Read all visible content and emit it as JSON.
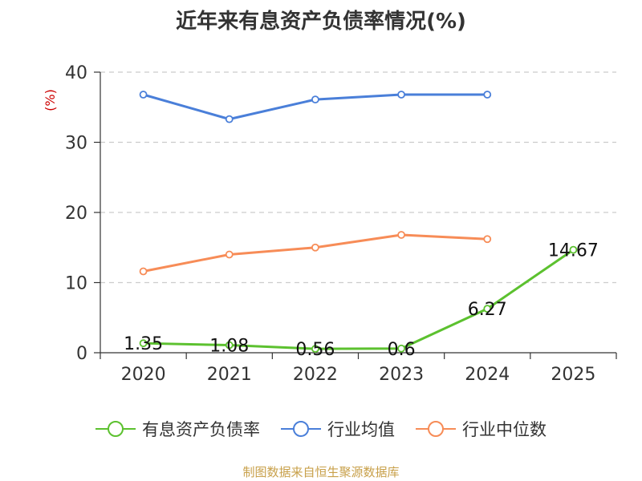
{
  "title": "近年来有息资产负债率情况(%)",
  "source": "制图数据来自恒生聚源数据库",
  "chart_data": {
    "type": "line",
    "title": "近年来有息资产负债率情况(%)",
    "categories": [
      "2020",
      "2021",
      "2022",
      "2023",
      "2024",
      "2025"
    ],
    "ylabel": "(%)",
    "ylim": [
      0,
      40
    ],
    "yticks": [
      "0",
      "10",
      "20",
      "30",
      "40"
    ],
    "grid": true,
    "legend_position": "bottom",
    "series": [
      {
        "name": "有息资产负债率",
        "color": "#5cc12f",
        "values": [
          1.35,
          1.08,
          0.56,
          0.6,
          6.27,
          14.67
        ],
        "labels": [
          "1.35",
          "1.08",
          "0.56",
          "0.6",
          "6.27",
          "14.67"
        ]
      },
      {
        "name": "行业均值",
        "color": "#4a7fd9",
        "values": [
          36.8,
          33.3,
          36.1,
          36.8,
          36.8,
          null
        ]
      },
      {
        "name": "行业中位数",
        "color": "#f78c57",
        "values": [
          11.6,
          14.0,
          15.0,
          16.8,
          16.2,
          null
        ]
      }
    ]
  }
}
